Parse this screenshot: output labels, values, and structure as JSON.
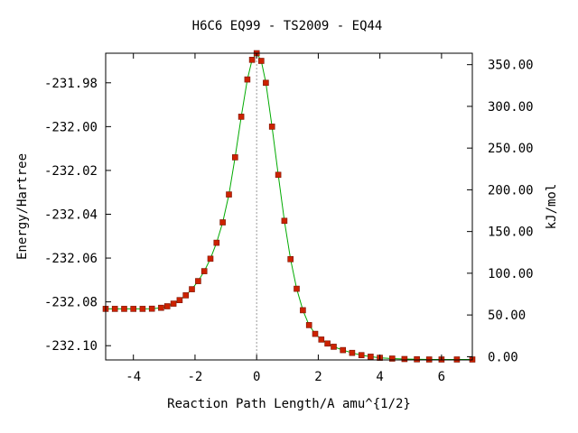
{
  "chart_data": {
    "type": "line",
    "title": "H6C6   EQ99 - TS2009 - EQ44",
    "xlabel": "Reaction Path Length/A amu^{1/2}",
    "ylabel": "Energy/Hartree",
    "y2label": "kJ/mol",
    "xlim": [
      -4.9,
      7.0
    ],
    "ylim": [
      -232.1065,
      -231.9665
    ],
    "y2lim": [
      -3.9,
      363.7
    ],
    "x_ticks": [
      -4,
      -2,
      0,
      2,
      4,
      6
    ],
    "x_tick_labels": [
      "-4",
      "-2",
      "0",
      "2",
      "4",
      "6"
    ],
    "y_ticks": [
      -231.98,
      -232.0,
      -232.02,
      -232.04,
      -232.06,
      -232.08,
      -232.1
    ],
    "y_tick_labels": [
      "-231.98",
      "-232.00",
      "-232.02",
      "-232.04",
      "-232.06",
      "-232.08",
      "-232.10"
    ],
    "y2_ticks": [
      350,
      300,
      250,
      200,
      150,
      100,
      50,
      0
    ],
    "y2_tick_labels": [
      "350.00",
      "300.00",
      "250.00",
      "200.00",
      "150.00",
      "100.00",
      "50.00",
      "0.00"
    ],
    "ts_x": 0,
    "grid": false,
    "legend": "none",
    "colors": {
      "line": "#00aa00",
      "marker": "#cc2200",
      "marker_edge": "#7a1200",
      "ts_line": "#999999"
    },
    "series": [
      {
        "x": [
          -4.9,
          -4.6,
          -4.3,
          -4.0,
          -3.7,
          -3.4,
          -3.1,
          -2.9,
          -2.7,
          -2.5,
          -2.3,
          -2.1,
          -1.9,
          -1.7,
          -1.5,
          -1.3,
          -1.1,
          -0.9,
          -0.7,
          -0.5,
          -0.3,
          -0.15,
          0.0,
          0.15,
          0.3,
          0.5,
          0.7,
          0.9,
          1.1,
          1.3,
          1.5,
          1.7,
          1.9,
          2.1,
          2.3,
          2.5,
          2.8,
          3.1,
          3.4,
          3.7,
          4.0,
          4.4,
          4.8,
          5.2,
          5.6,
          6.0,
          6.5,
          7.0
        ],
        "y": [
          -232.0832,
          -232.0832,
          -232.0832,
          -232.0832,
          -232.0832,
          -232.0831,
          -232.0827,
          -232.082,
          -232.0808,
          -232.0792,
          -232.077,
          -232.0742,
          -232.0705,
          -232.066,
          -232.0603,
          -232.053,
          -232.0437,
          -232.031,
          -232.014,
          -231.9955,
          -231.9785,
          -231.9695,
          -231.9665,
          -231.97,
          -231.98,
          -232.0,
          -232.022,
          -232.043,
          -232.0605,
          -232.074,
          -232.0838,
          -232.0906,
          -232.0946,
          -232.0972,
          -232.099,
          -232.1005,
          -232.102,
          -232.1033,
          -232.1043,
          -232.105,
          -232.1055,
          -232.1059,
          -232.1061,
          -232.1062,
          -232.1063,
          -232.1063,
          -232.1063,
          -232.1063
        ]
      }
    ]
  }
}
